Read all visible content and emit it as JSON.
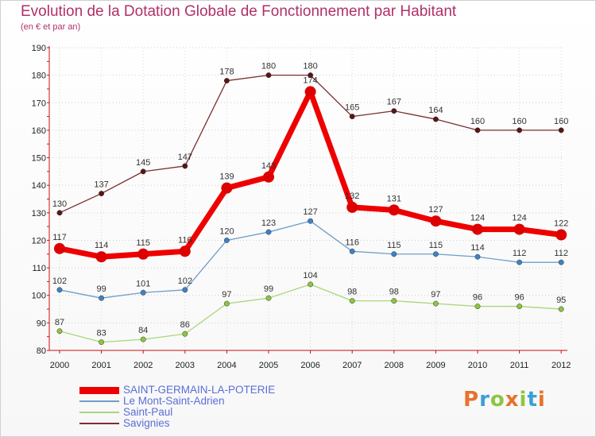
{
  "title": "Evolution de la Dotation Globale de Fonctionnement par Habitant",
  "subtitle": "(en € et par an)",
  "logo": "Proxiti",
  "colors": {
    "title": "#b0306a",
    "axis": "#d01010",
    "grid": "#000000",
    "legend_text": "#5a6fd8"
  },
  "chart_data": {
    "type": "line",
    "title": "Evolution de la Dotation Globale de Fonctionnement par Habitant",
    "ylabel": "(en € et par an)",
    "xlabel": "",
    "x": [
      "2000",
      "2001",
      "2002",
      "2003",
      "2004",
      "2005",
      "2006",
      "2007",
      "2008",
      "2009",
      "2010",
      "2011",
      "2012"
    ],
    "ylim": [
      80,
      190
    ],
    "yticks": [
      80,
      90,
      100,
      110,
      120,
      130,
      140,
      150,
      160,
      170,
      180,
      190
    ],
    "legend_position": "bottom-left",
    "series": [
      {
        "name": "SAINT-GERMAIN-LA-POTERIE",
        "color": "#ee0000",
        "marker_color": "#dd0000",
        "width": 7,
        "marker": 7,
        "values": [
          117,
          114,
          115,
          116,
          139,
          143,
          174,
          132,
          131,
          127,
          124,
          124,
          122
        ]
      },
      {
        "name": "Le Mont-Saint-Adrien",
        "color": "#6d9ec9",
        "marker_color": "#3d82c6",
        "width": 1.3,
        "marker": 3.2,
        "values": [
          102,
          99,
          101,
          102,
          120,
          123,
          127,
          116,
          115,
          115,
          114,
          112,
          112
        ]
      },
      {
        "name": "Saint-Paul",
        "color": "#a8d77a",
        "marker_color": "#8cc63f",
        "width": 1.3,
        "marker": 3.2,
        "values": [
          87,
          83,
          84,
          86,
          97,
          99,
          104,
          98,
          98,
          97,
          96,
          96,
          95
        ]
      },
      {
        "name": "Savignies",
        "color": "#7a3030",
        "marker_color": "#5a1515",
        "width": 1.3,
        "marker": 3.2,
        "values": [
          130,
          137,
          145,
          147,
          178,
          180,
          180,
          165,
          167,
          164,
          160,
          160,
          160
        ]
      }
    ]
  }
}
